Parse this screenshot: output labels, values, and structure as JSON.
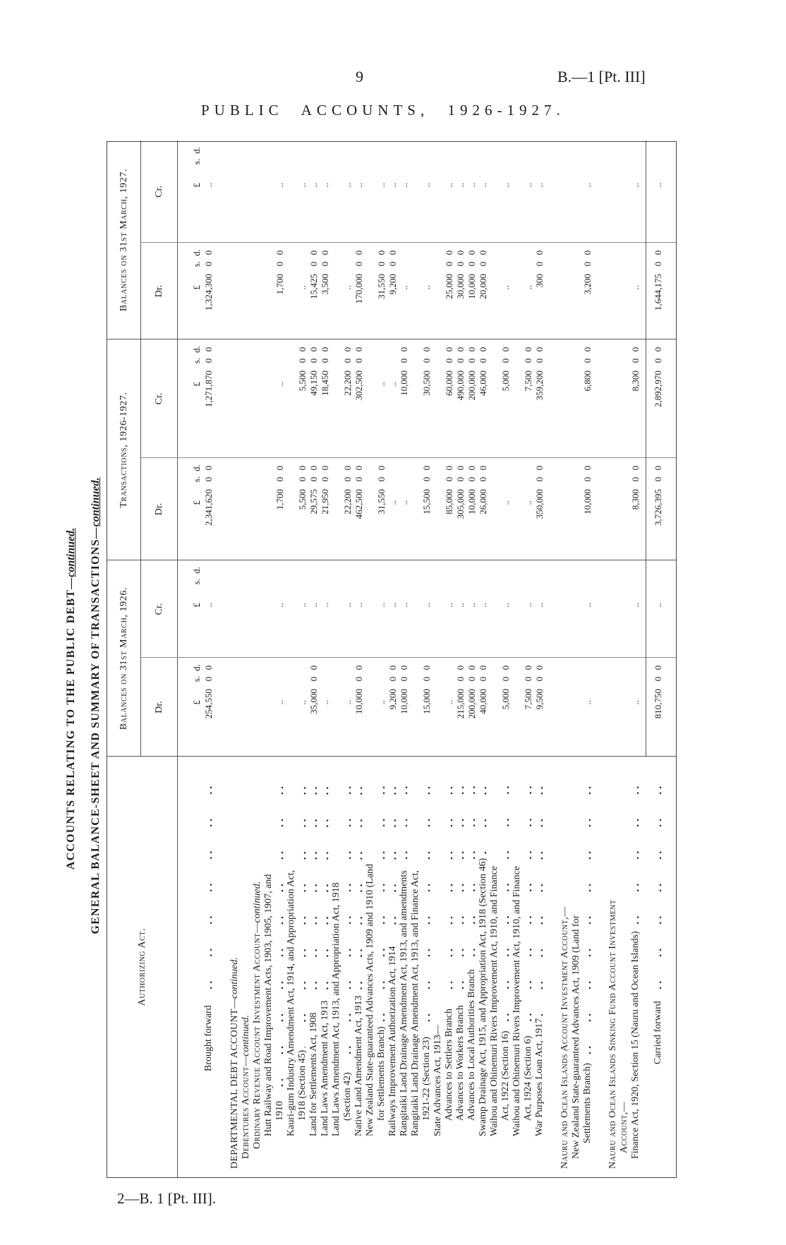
{
  "page": {
    "number": "9",
    "ref": "B.—1 [Pt. III]",
    "title": "PUBLIC ACCOUNTS, 1926-1927.",
    "footer": "2—B. 1 [Pt. III]."
  },
  "headings": {
    "line1": "ACCOUNTS RELATING TO THE PUBLIC DEBT—",
    "line1_suffix": "continued.",
    "line2": "GENERAL BALANCE-SHEET AND SUMMARY OF TRANSACTIONS—",
    "line2_suffix": "continued."
  },
  "table": {
    "headers": {
      "authorizing_act": "Authorizing Act.",
      "groups": [
        "Balances on 31st March, 1926.",
        "Transactions, 1926-1927.",
        "Balances on 31st March, 1927."
      ],
      "dr": "Dr.",
      "cr": "Cr.",
      "units": [
        "£",
        "s.",
        "d."
      ]
    },
    "brought_forward": {
      "label": "Brought forward",
      "values": [
        [
          "254,550",
          "0",
          "0"
        ],
        [
          ".."
        ],
        [
          "2,341,620",
          "0",
          "0"
        ],
        [
          "1,271,870",
          "0",
          "0"
        ],
        [
          "1,324,300",
          "0",
          "0"
        ],
        [
          ".."
        ]
      ]
    },
    "rows": [
      {
        "kind": "section",
        "style": "caps",
        "level": 0,
        "lines": [
          "DEPARTMENTAL DEBT ACCOUNT—"
        ],
        "suffix": "continued."
      },
      {
        "kind": "section-sub",
        "style": "smallcaps",
        "level": 1,
        "lines": [
          "Debentures Account—"
        ],
        "suffix": "continued."
      },
      {
        "kind": "section-sub",
        "style": "smallcaps",
        "level": 2,
        "lines": [
          "Ordinary Revenue Account Investment Account—"
        ],
        "suffix": "continued."
      },
      {
        "kind": "item",
        "level": 3,
        "lines": [
          "Hutt Railway and Road Improvement Acts, 1903, 1905, 1907, and",
          "1910"
        ],
        "values": [
          [
            ".."
          ],
          [
            ".."
          ],
          [
            "1,700",
            "0",
            "0"
          ],
          [
            ".."
          ],
          [
            "1,700",
            "0",
            "0"
          ],
          [
            ".."
          ]
        ]
      },
      {
        "kind": "item",
        "level": 3,
        "lines": [
          "Kauri-gum Industry Amendment Act, 1914, and Appropriation Act,",
          "1918 (Section 45)"
        ],
        "values": [
          [
            ".."
          ],
          [
            ".."
          ],
          [
            "5,500",
            "0",
            "0"
          ],
          [
            "5,500",
            "0",
            "0"
          ],
          [
            ".."
          ],
          [
            ".."
          ]
        ]
      },
      {
        "kind": "item",
        "level": 3,
        "lines": [
          "Land for Settlements Act, 1908"
        ],
        "values": [
          [
            "35,000",
            "0",
            "0"
          ],
          [
            ".."
          ],
          [
            "29,575",
            "0",
            "0"
          ],
          [
            "49,150",
            "0",
            "0"
          ],
          [
            "15,425",
            "0",
            "0"
          ],
          [
            ".."
          ]
        ]
      },
      {
        "kind": "item",
        "level": 3,
        "lines": [
          "Land Laws Amendment Act, 1913"
        ],
        "values": [
          [
            ".."
          ],
          [
            ".."
          ],
          [
            "21,950",
            "0",
            "0"
          ],
          [
            "18,450",
            "0",
            "0"
          ],
          [
            "3,500",
            "0",
            "0"
          ],
          [
            ".."
          ]
        ]
      },
      {
        "kind": "item",
        "level": 3,
        "lines": [
          "Land Laws Amendment Act, 1913, and Appropriation Act, 1918",
          "(Section 42)"
        ],
        "values": [
          [
            ".."
          ],
          [
            ".."
          ],
          [
            "22,200",
            "0",
            "0"
          ],
          [
            "22,200",
            "0",
            "0"
          ],
          [
            ".."
          ],
          [
            ".."
          ]
        ]
      },
      {
        "kind": "item",
        "level": 3,
        "lines": [
          "Native Land Amendment Act, 1913"
        ],
        "values": [
          [
            "10,000",
            "0",
            "0"
          ],
          [
            ".."
          ],
          [
            "462,500",
            "0",
            "0"
          ],
          [
            "302,500",
            "0",
            "0"
          ],
          [
            "170,000",
            "0",
            "0"
          ],
          [
            ".."
          ]
        ]
      },
      {
        "kind": "item",
        "level": 3,
        "lines": [
          "New Zealand State-guaranteed Advances Acts, 1909 and 1910 (Land",
          "for Settlements Branch)"
        ],
        "values": [
          [
            ".."
          ],
          [
            ".."
          ],
          [
            "31,550",
            "0",
            "0"
          ],
          [
            ".."
          ],
          [
            "31,550",
            "0",
            "0"
          ],
          [
            ".."
          ]
        ]
      },
      {
        "kind": "item",
        "level": 3,
        "lines": [
          "Railways Improvement Authorization Act, 1914"
        ],
        "values": [
          [
            "9,200",
            "0",
            "0"
          ],
          [
            ".."
          ],
          [
            ".."
          ],
          [
            ".."
          ],
          [
            "9,200",
            "0",
            "0"
          ],
          [
            ".."
          ]
        ]
      },
      {
        "kind": "item",
        "level": 3,
        "lines": [
          "Rangitaiki Land Drainage Amendment Act, 1913, and amendments"
        ],
        "values": [
          [
            "10,000",
            "0",
            "0"
          ],
          [
            ".."
          ],
          [
            ".."
          ],
          [
            "10,000",
            "0",
            "0"
          ],
          [
            ".."
          ],
          [
            ".."
          ]
        ]
      },
      {
        "kind": "item",
        "level": 3,
        "lines": [
          "Rangitaiki Land Drainage Amendment Act, 1913, and Finance Act,",
          "1921-22 (Section 23)"
        ],
        "values": [
          [
            "15,000",
            "0",
            "0"
          ],
          [
            ".."
          ],
          [
            "15,500",
            "0",
            "0"
          ],
          [
            "30,500",
            "0",
            "0"
          ],
          [
            ".."
          ],
          [
            ".."
          ]
        ]
      },
      {
        "kind": "group",
        "level": 3,
        "lines": [
          "State Advances Act, 1913—"
        ]
      },
      {
        "kind": "item",
        "level": 4,
        "lines": [
          "Advances to Settlers Branch"
        ],
        "values": [
          [
            ".."
          ],
          [
            ".."
          ],
          [
            "85,000",
            "0",
            "0"
          ],
          [
            "60,000",
            "0",
            "0"
          ],
          [
            "25,000",
            "0",
            "0"
          ],
          [
            ".."
          ]
        ]
      },
      {
        "kind": "item",
        "level": 4,
        "lines": [
          "Advances to Workers Branch"
        ],
        "values": [
          [
            "215,000",
            "0",
            "0"
          ],
          [
            ".."
          ],
          [
            "305,000",
            "0",
            "0"
          ],
          [
            "490,000",
            "0",
            "0"
          ],
          [
            "30,000",
            "0",
            "0"
          ],
          [
            ".."
          ]
        ]
      },
      {
        "kind": "item",
        "level": 4,
        "lines": [
          "Advances to Local Authorities Branch"
        ],
        "values": [
          [
            "200,000",
            "0",
            "0"
          ],
          [
            ".."
          ],
          [
            "10,000",
            "0",
            "0"
          ],
          [
            "200,000",
            "0",
            "0"
          ],
          [
            "10,000",
            "0",
            "0"
          ],
          [
            ".."
          ]
        ]
      },
      {
        "kind": "item",
        "level": 3,
        "lines": [
          "Swamp Drainage Act, 1915, and Appropriation Act, 1918 (Section 46)"
        ],
        "values": [
          [
            "40,000",
            "0",
            "0"
          ],
          [
            ".."
          ],
          [
            "26,000",
            "0",
            "0"
          ],
          [
            "46,000",
            "0",
            "0"
          ],
          [
            "20,000",
            "0",
            "0"
          ],
          [
            ".."
          ]
        ]
      },
      {
        "kind": "item",
        "level": 3,
        "lines": [
          "Waihou and Ohinemuri Rivers Improvement Act, 1910, and Finance",
          "Act, 1922 (Section 16)"
        ],
        "values": [
          [
            "5,000",
            "0",
            "0"
          ],
          [
            ".."
          ],
          [
            ".."
          ],
          [
            "5,000",
            "0",
            "0"
          ],
          [
            ".."
          ],
          [
            ".."
          ]
        ]
      },
      {
        "kind": "item",
        "level": 3,
        "lines": [
          "Waihou and Ohinemuri Rivers Improvement Act, 1910, and Finance",
          "Act, 1924 (Section 6)"
        ],
        "values": [
          [
            "7,500",
            "0",
            "0"
          ],
          [
            ".."
          ],
          [
            ".."
          ],
          [
            "7,500",
            "0",
            "0"
          ],
          [
            ".."
          ],
          [
            ".."
          ]
        ]
      },
      {
        "kind": "item",
        "level": 3,
        "lines": [
          "War Purposes Loan Act, 1917"
        ],
        "values": [
          [
            "9,500",
            "0",
            "0"
          ],
          [
            ".."
          ],
          [
            "350,000",
            "0",
            "0"
          ],
          [
            "359,200",
            "0",
            "0"
          ],
          [
            "300",
            "0",
            "0"
          ],
          [
            ".."
          ]
        ]
      },
      {
        "kind": "section",
        "style": "smallcaps",
        "level": 0,
        "lines": [
          "Nauru and Ocean Islands Account Investment Account,—"
        ]
      },
      {
        "kind": "item",
        "level": 1,
        "lines": [
          "New Zealand State-guaranteed Advances Act, 1909 (Land for",
          "Settlements Branch)"
        ],
        "values": [
          [
            ".."
          ],
          [
            ".."
          ],
          [
            "10,000",
            "0",
            "0"
          ],
          [
            "6,800",
            "0",
            "0"
          ],
          [
            "3,200",
            "0",
            "0"
          ],
          [
            ".."
          ]
        ]
      },
      {
        "kind": "section",
        "style": "smallcaps",
        "level": 0,
        "lines": [
          "Nauru and Ocean Islands Sinking Fund Account Investment",
          "Account,—"
        ]
      },
      {
        "kind": "item",
        "level": 1,
        "lines": [
          "Finance Act, 1920, Section 15 (Nauru and Ocean Islands)"
        ],
        "values": [
          [
            ".."
          ],
          [
            ".."
          ],
          [
            "8,300",
            "0",
            "0"
          ],
          [
            "8,300",
            "0",
            "0"
          ],
          [
            ".."
          ],
          [
            ".."
          ]
        ]
      }
    ],
    "carried_forward": {
      "label": "Carried forward",
      "values": [
        [
          "810,750",
          "0",
          "0"
        ],
        [
          ".."
        ],
        [
          "3,726,395",
          "0",
          "0"
        ],
        [
          "2,892,970",
          "0",
          "0"
        ],
        [
          "1,644,175",
          "0",
          "0"
        ],
        [
          ".."
        ]
      ]
    }
  }
}
